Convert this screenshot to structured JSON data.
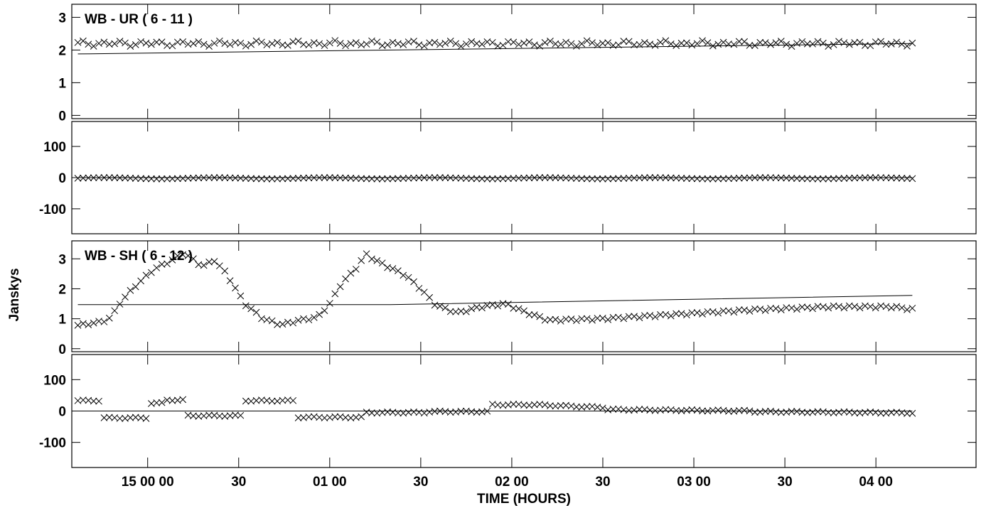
{
  "chart_data": {
    "type": "scatter",
    "xlabel": "TIME (HOURS)",
    "ylabel": "Janskys",
    "x_unit": "minutes from 15 00 00",
    "x_ticks": [
      {
        "t": 0,
        "label": "15 00 00"
      },
      {
        "t": 30,
        "label": "30"
      },
      {
        "t": 60,
        "label": "01 00"
      },
      {
        "t": 90,
        "label": "30"
      },
      {
        "t": 120,
        "label": "02 00"
      },
      {
        "t": 150,
        "label": "30"
      },
      {
        "t": 180,
        "label": "03 00"
      },
      {
        "t": 210,
        "label": "30"
      },
      {
        "t": 240,
        "label": "04 00"
      }
    ],
    "xlim": [
      -25,
      273
    ],
    "panels": [
      {
        "title": "WB - UR ( 6 - 11 )",
        "quantity": "amplitude",
        "ylim": [
          -0.1,
          3.4
        ],
        "yticks": [
          0,
          1,
          2,
          3
        ],
        "points": {
          "t0": -23,
          "t1": 252,
          "n": 160,
          "kind": "amp_flat",
          "level": 2.2
        },
        "model": [
          [
            -23,
            1.88
          ],
          [
            252,
            2.2
          ]
        ]
      },
      {
        "title": "",
        "quantity": "phase",
        "ylim": [
          -180,
          180
        ],
        "yticks": [
          100,
          0,
          -100
        ],
        "points": {
          "t0": -23,
          "t1": 252,
          "n": 160,
          "kind": "phase_flat",
          "level": -2
        },
        "model": [
          [
            -23,
            0
          ],
          [
            252,
            0
          ]
        ]
      },
      {
        "title": "WB - SH ( 6 - 12 )",
        "quantity": "amplitude",
        "ylim": [
          -0.1,
          3.6
        ],
        "yticks": [
          0,
          1,
          2,
          3
        ],
        "points": {
          "t0": -23,
          "t1": 252,
          "n": 160,
          "kind": "amp_var"
        },
        "model": [
          [
            -23,
            1.47
          ],
          [
            80,
            1.47
          ],
          [
            252,
            1.78
          ]
        ]
      },
      {
        "title": "",
        "quantity": "phase",
        "ylim": [
          -180,
          180
        ],
        "yticks": [
          100,
          0,
          -100
        ],
        "points": {
          "t0": -23,
          "t1": 252,
          "n": 160,
          "kind": "phase_var"
        },
        "model": [
          [
            -23,
            0
          ],
          [
            252,
            0
          ]
        ]
      }
    ]
  }
}
